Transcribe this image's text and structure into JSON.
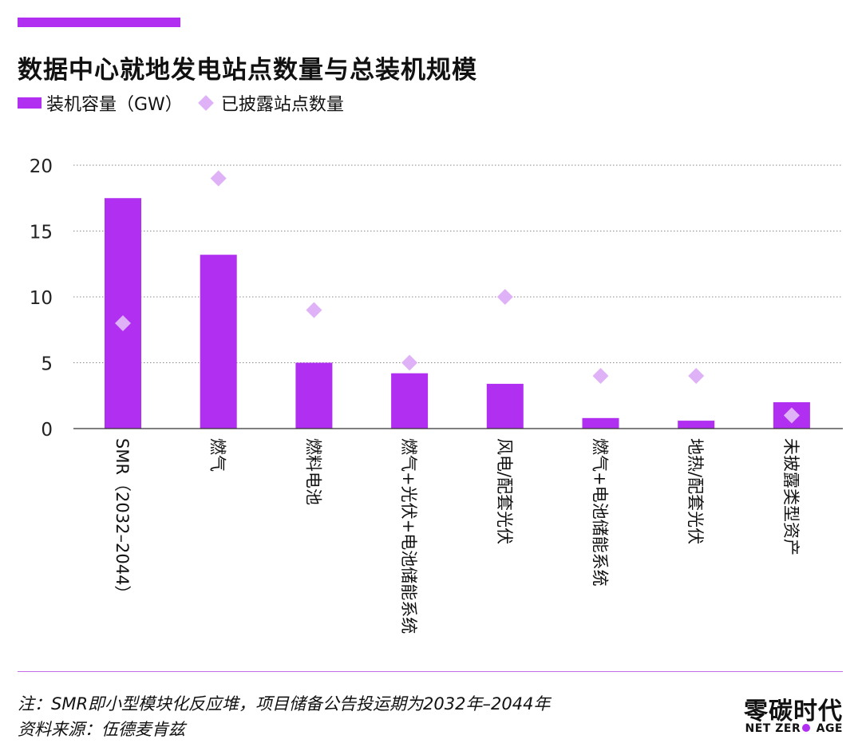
{
  "colors": {
    "accent": "#b12ff0",
    "bar": "#b12ff0",
    "diamond": "#dfb2f7",
    "grid": "#888888",
    "divider": "#c36be8"
  },
  "title": "数据中心就地发电站点数量与总装机规模",
  "legend": {
    "bar_label": "装机容量（GW）",
    "diamond_label": "已披露站点数量"
  },
  "chart_data": {
    "type": "bar",
    "title": "数据中心就地发电站点数量与总装机规模",
    "categories": [
      "SMR（2032–2044）",
      "燃气",
      "燃料电池",
      "燃气+光伏+电池储能系统",
      "风电/配套光伏",
      "燃气+电池储能系统",
      "地热/配套光伏",
      "未披露类型资产"
    ],
    "series": [
      {
        "name": "装机容量（GW）",
        "type": "bar",
        "values": [
          17.5,
          13.2,
          5.0,
          4.2,
          3.4,
          0.8,
          0.6,
          2.0
        ]
      },
      {
        "name": "已披露站点数量",
        "type": "scatter",
        "marker": "diamond",
        "values": [
          8,
          19,
          9,
          5,
          10,
          4,
          4,
          1
        ]
      }
    ],
    "ylim": [
      0,
      20
    ],
    "yticks": [
      0,
      5,
      10,
      15,
      20
    ],
    "grid": true,
    "legend_position": "top-left"
  },
  "footer": {
    "note": "注：SMR即小型模块化反应堆，项目储备公告投运期为2032年–2044年",
    "source": "资料来源：伍德麦肯兹"
  },
  "brand": {
    "cn": "零碳时代",
    "en_left": "NET ZER",
    "en_right": " AGE"
  }
}
